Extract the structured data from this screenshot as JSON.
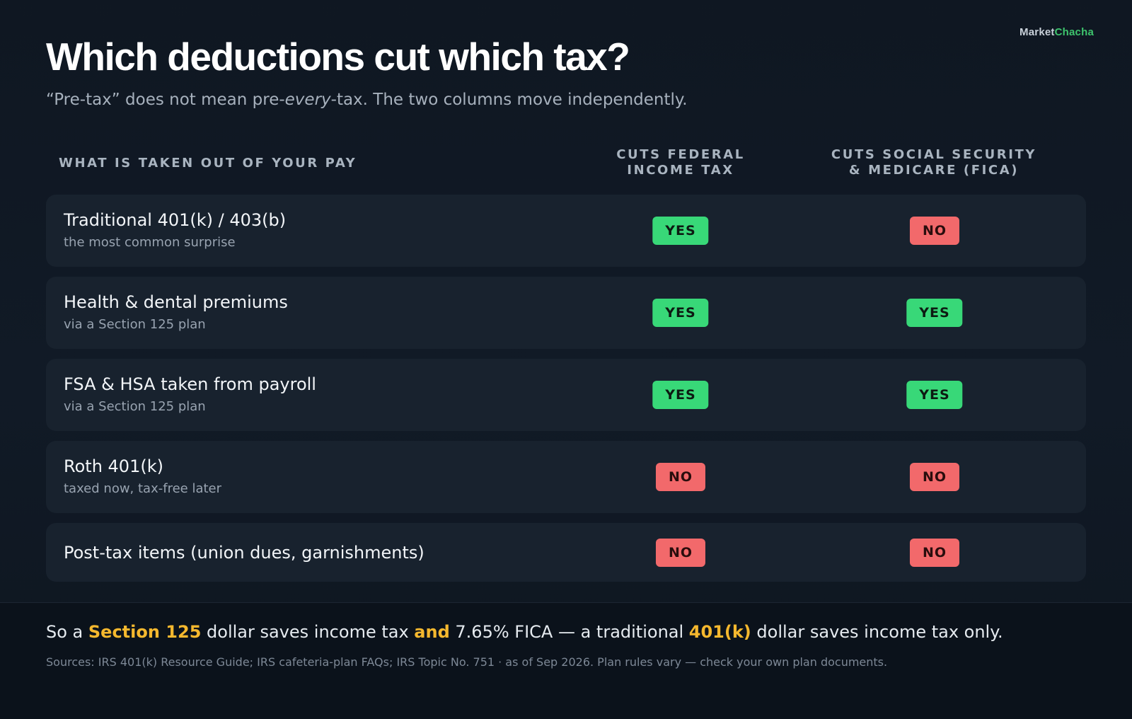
{
  "brand": {
    "part1": "Market",
    "part2": "Chacha"
  },
  "title": "Which deductions cut which tax?",
  "subtitle": {
    "before": "“Pre-tax” does not mean pre-",
    "emph": "every",
    "after": "-tax. The two columns move independently."
  },
  "columns": {
    "item": "WHAT IS TAKEN OUT OF YOUR PAY",
    "federal_line1": "CUTS FEDERAL",
    "federal_line2": "INCOME TAX",
    "fica_line1": "CUTS SOCIAL SECURITY",
    "fica_line2": "& MEDICARE (FICA)"
  },
  "rows": [
    {
      "main": "Traditional 401(k) / 403(b)",
      "sub": "the most common surprise",
      "federal": "YES",
      "fica": "NO"
    },
    {
      "main": "Health & dental premiums",
      "sub": "via a Section 125 plan",
      "federal": "YES",
      "fica": "YES"
    },
    {
      "main": "FSA & HSA taken from payroll",
      "sub": "via a Section 125 plan",
      "federal": "YES",
      "fica": "YES"
    },
    {
      "main": "Roth 401(k)",
      "sub": "taxed now, tax-free later",
      "federal": "NO",
      "fica": "NO"
    },
    {
      "main": "Post-tax items (union dues, garnishments)",
      "federal": "NO",
      "fica": "NO"
    }
  ],
  "footer": {
    "t1": "So a ",
    "h1": "Section 125",
    "t2": " dollar saves income tax ",
    "h2": "and",
    "t3": " 7.65% FICA — a traditional ",
    "h3": "401(k)",
    "t4": " dollar saves income tax only.",
    "sources": "Sources: IRS 401(k) Resource Guide; IRS cafeteria-plan FAQs; IRS Topic No. 751 · as of Sep 2026. Plan rules vary — check your own plan documents."
  },
  "colors": {
    "yes": "#38d878",
    "no": "#f2696b",
    "highlight": "#f5b82e",
    "brand_accent": "#3ec46d"
  }
}
